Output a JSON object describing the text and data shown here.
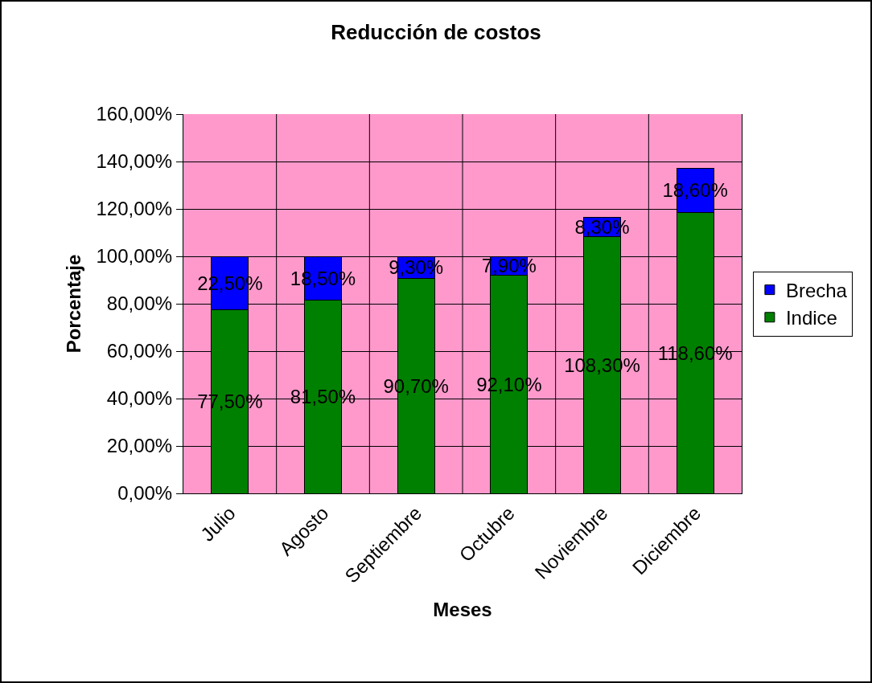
{
  "chart_data": {
    "type": "bar",
    "title": "Reducción de costos",
    "xlabel": "Meses",
    "ylabel": "Porcentaje",
    "categories": [
      "Julio",
      "Agosto",
      "Septiembre",
      "Octubre",
      "Noviembre",
      "Diciembre"
    ],
    "stacked": true,
    "series": [
      {
        "name": "Indice",
        "color": "#008000",
        "values": [
          77.5,
          81.5,
          90.7,
          92.1,
          108.3,
          118.6
        ],
        "value_labels": [
          "77,50%",
          "81,50%",
          "90,70%",
          "92,10%",
          "108,30%",
          "118,60%"
        ]
      },
      {
        "name": "Brecha",
        "color": "#0000ff",
        "values": [
          22.5,
          18.5,
          9.3,
          7.9,
          8.3,
          18.6
        ],
        "value_labels": [
          "22,50%",
          "18,50%",
          "9,30%",
          "7,90%",
          "8,30%",
          "18,60%"
        ]
      }
    ],
    "ylim": [
      0,
      160
    ],
    "yticks": [
      {
        "value": 0,
        "label": "0,00%"
      },
      {
        "value": 20,
        "label": "20,00%"
      },
      {
        "value": 40,
        "label": "40,00%"
      },
      {
        "value": 60,
        "label": "60,00%"
      },
      {
        "value": 80,
        "label": "80,00%"
      },
      {
        "value": 100,
        "label": "100,00%"
      },
      {
        "value": 120,
        "label": "120,00%"
      },
      {
        "value": 140,
        "label": "140,00%"
      },
      {
        "value": 160,
        "label": "160,00%"
      }
    ],
    "grid": true,
    "legend": "right"
  }
}
